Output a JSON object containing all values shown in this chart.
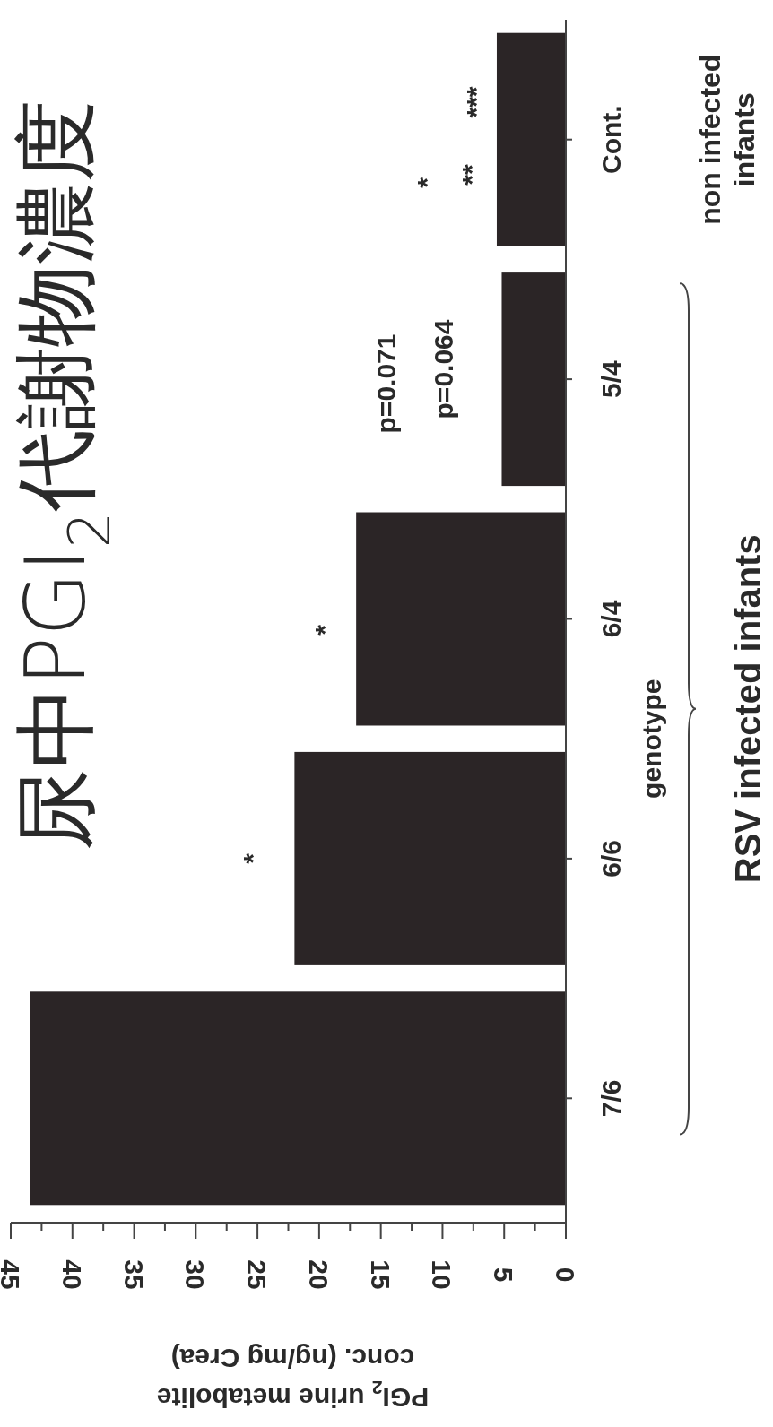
{
  "chart_data": {
    "type": "bar",
    "orientation": "horizontal",
    "title": "尿中PGI$_{2}$代謝物濃度",
    "ylabel": "genotype",
    "xlabel": "PGI$_{2}$ urine metabolite conc. (ng/mg Crea)",
    "categories": [
      "Cont.",
      "5/4",
      "6/4",
      "6/6",
      "7/6"
    ],
    "values": [
      5.6,
      5.2,
      17.0,
      22.0,
      43.4
    ],
    "color": "#2b2526",
    "xlim": [
      45,
      0
    ],
    "xticks": [
      0,
      {
        "value": 2.5,
        "label": null
      },
      5,
      {
        "value": 7.5,
        "label": null
      },
      10,
      {
        "value": 12.5,
        "label": null
      },
      15,
      {
        "value": 17.5,
        "label": null
      },
      20,
      {
        "value": 22.5,
        "label": null
      },
      25,
      {
        "value": 27.5,
        "label": null
      },
      30,
      {
        "value": 32.5,
        "label": null
      },
      35,
      {
        "value": 37.5,
        "label": null
      },
      40,
      {
        "value": 42.5,
        "label": null
      },
      45
    ],
    "annotations": [
      "*",
      "**",
      "***",
      "p=0.071",
      "p=0.064",
      "*",
      "*",
      "non infected infants",
      "RSV infected infants"
    ]
  }
}
